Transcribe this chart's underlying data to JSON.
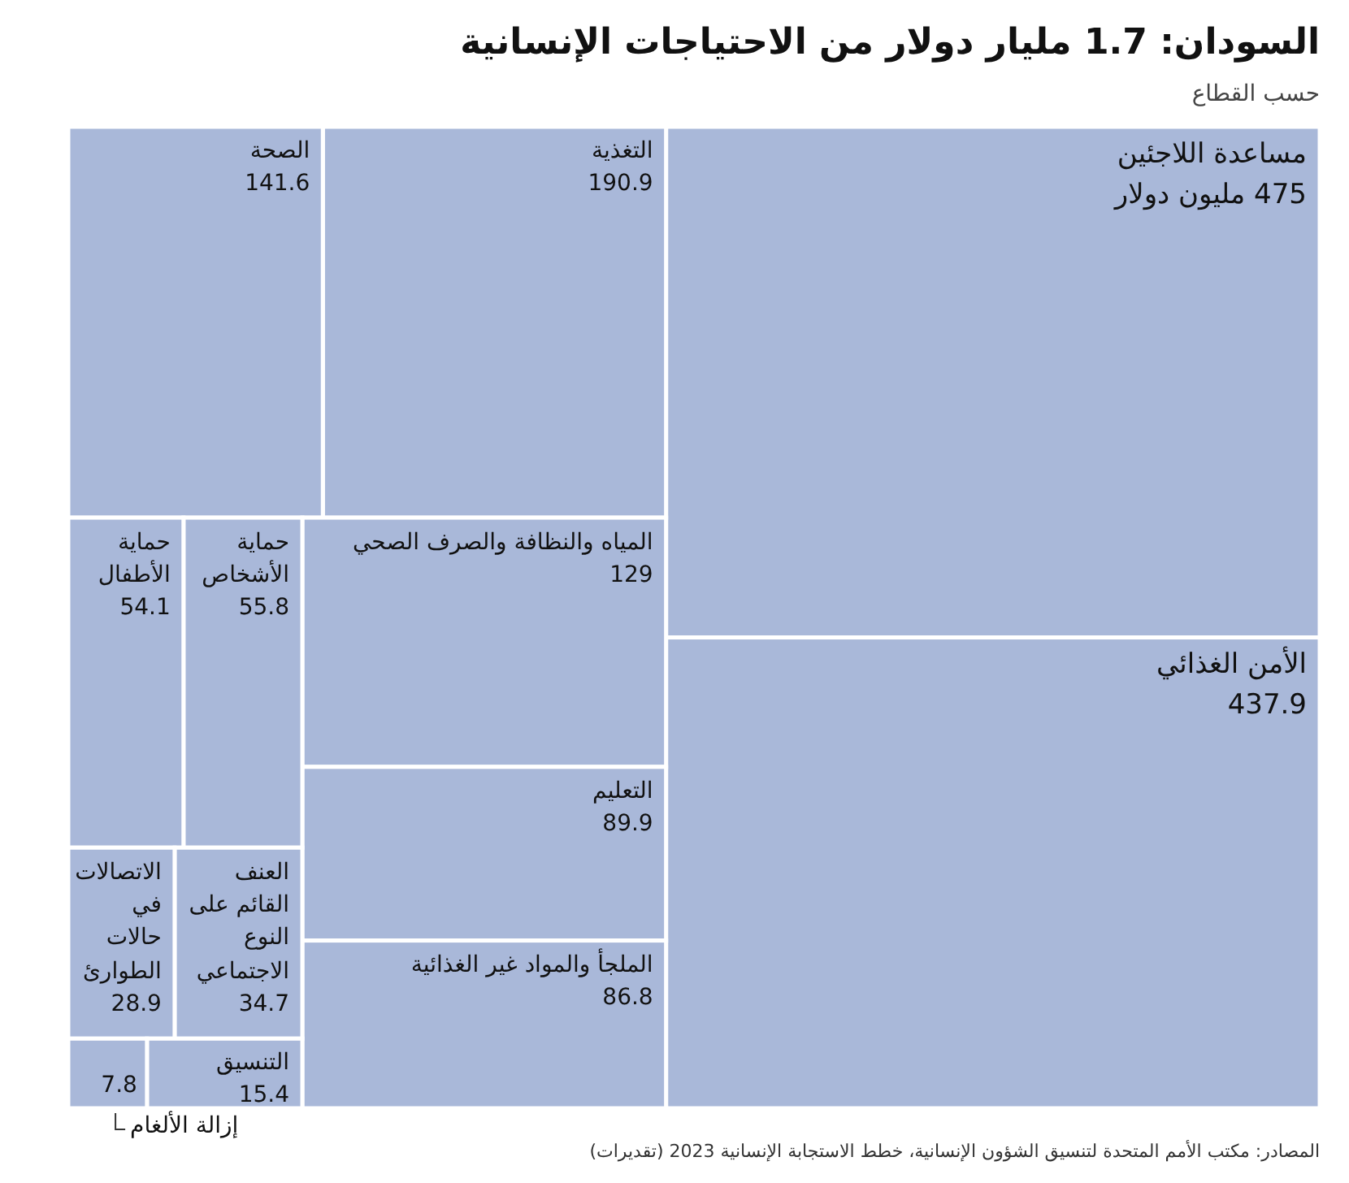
{
  "chart_data": {
    "type": "other",
    "title": "السودان: 1.7 مليار دولار من الاحتياجات الإنسانية",
    "subtitle": "حسب القطاع",
    "categories": [
      "مساعدة اللاجئين",
      "الأمن الغذائي",
      "التغذية",
      "الصحة",
      "المياه والنظافة والصرف الصحي",
      "التعليم",
      "الملجأ والمواد غير الغذائية",
      "حماية الأشخاص",
      "حماية الأطفال",
      "العنف القائم على النوع الاجتماعي",
      "الاتصالات في حالات الطوارئ",
      "التنسيق",
      "إزالة الألغام"
    ],
    "values": [
      475,
      437.9,
      190.9,
      141.6,
      129,
      89.9,
      86.8,
      55.8,
      54.1,
      34.7,
      28.9,
      15.4,
      7.8
    ],
    "value_labels": [
      "475 مليون دولار",
      "437.9",
      "190.9",
      "141.6",
      "129",
      "89.9",
      "86.8",
      "55.8",
      "54.1",
      "34.7",
      "28.9",
      "15.4",
      "7.8"
    ],
    "color": "#a9b8d9",
    "annotations": [
      "المصادر: مكتب الأمم المتحدة لتنسيق الشؤون الإنسانية، خطط الاستجابة الإنسانية 2023 (تقديرات)"
    ]
  }
}
